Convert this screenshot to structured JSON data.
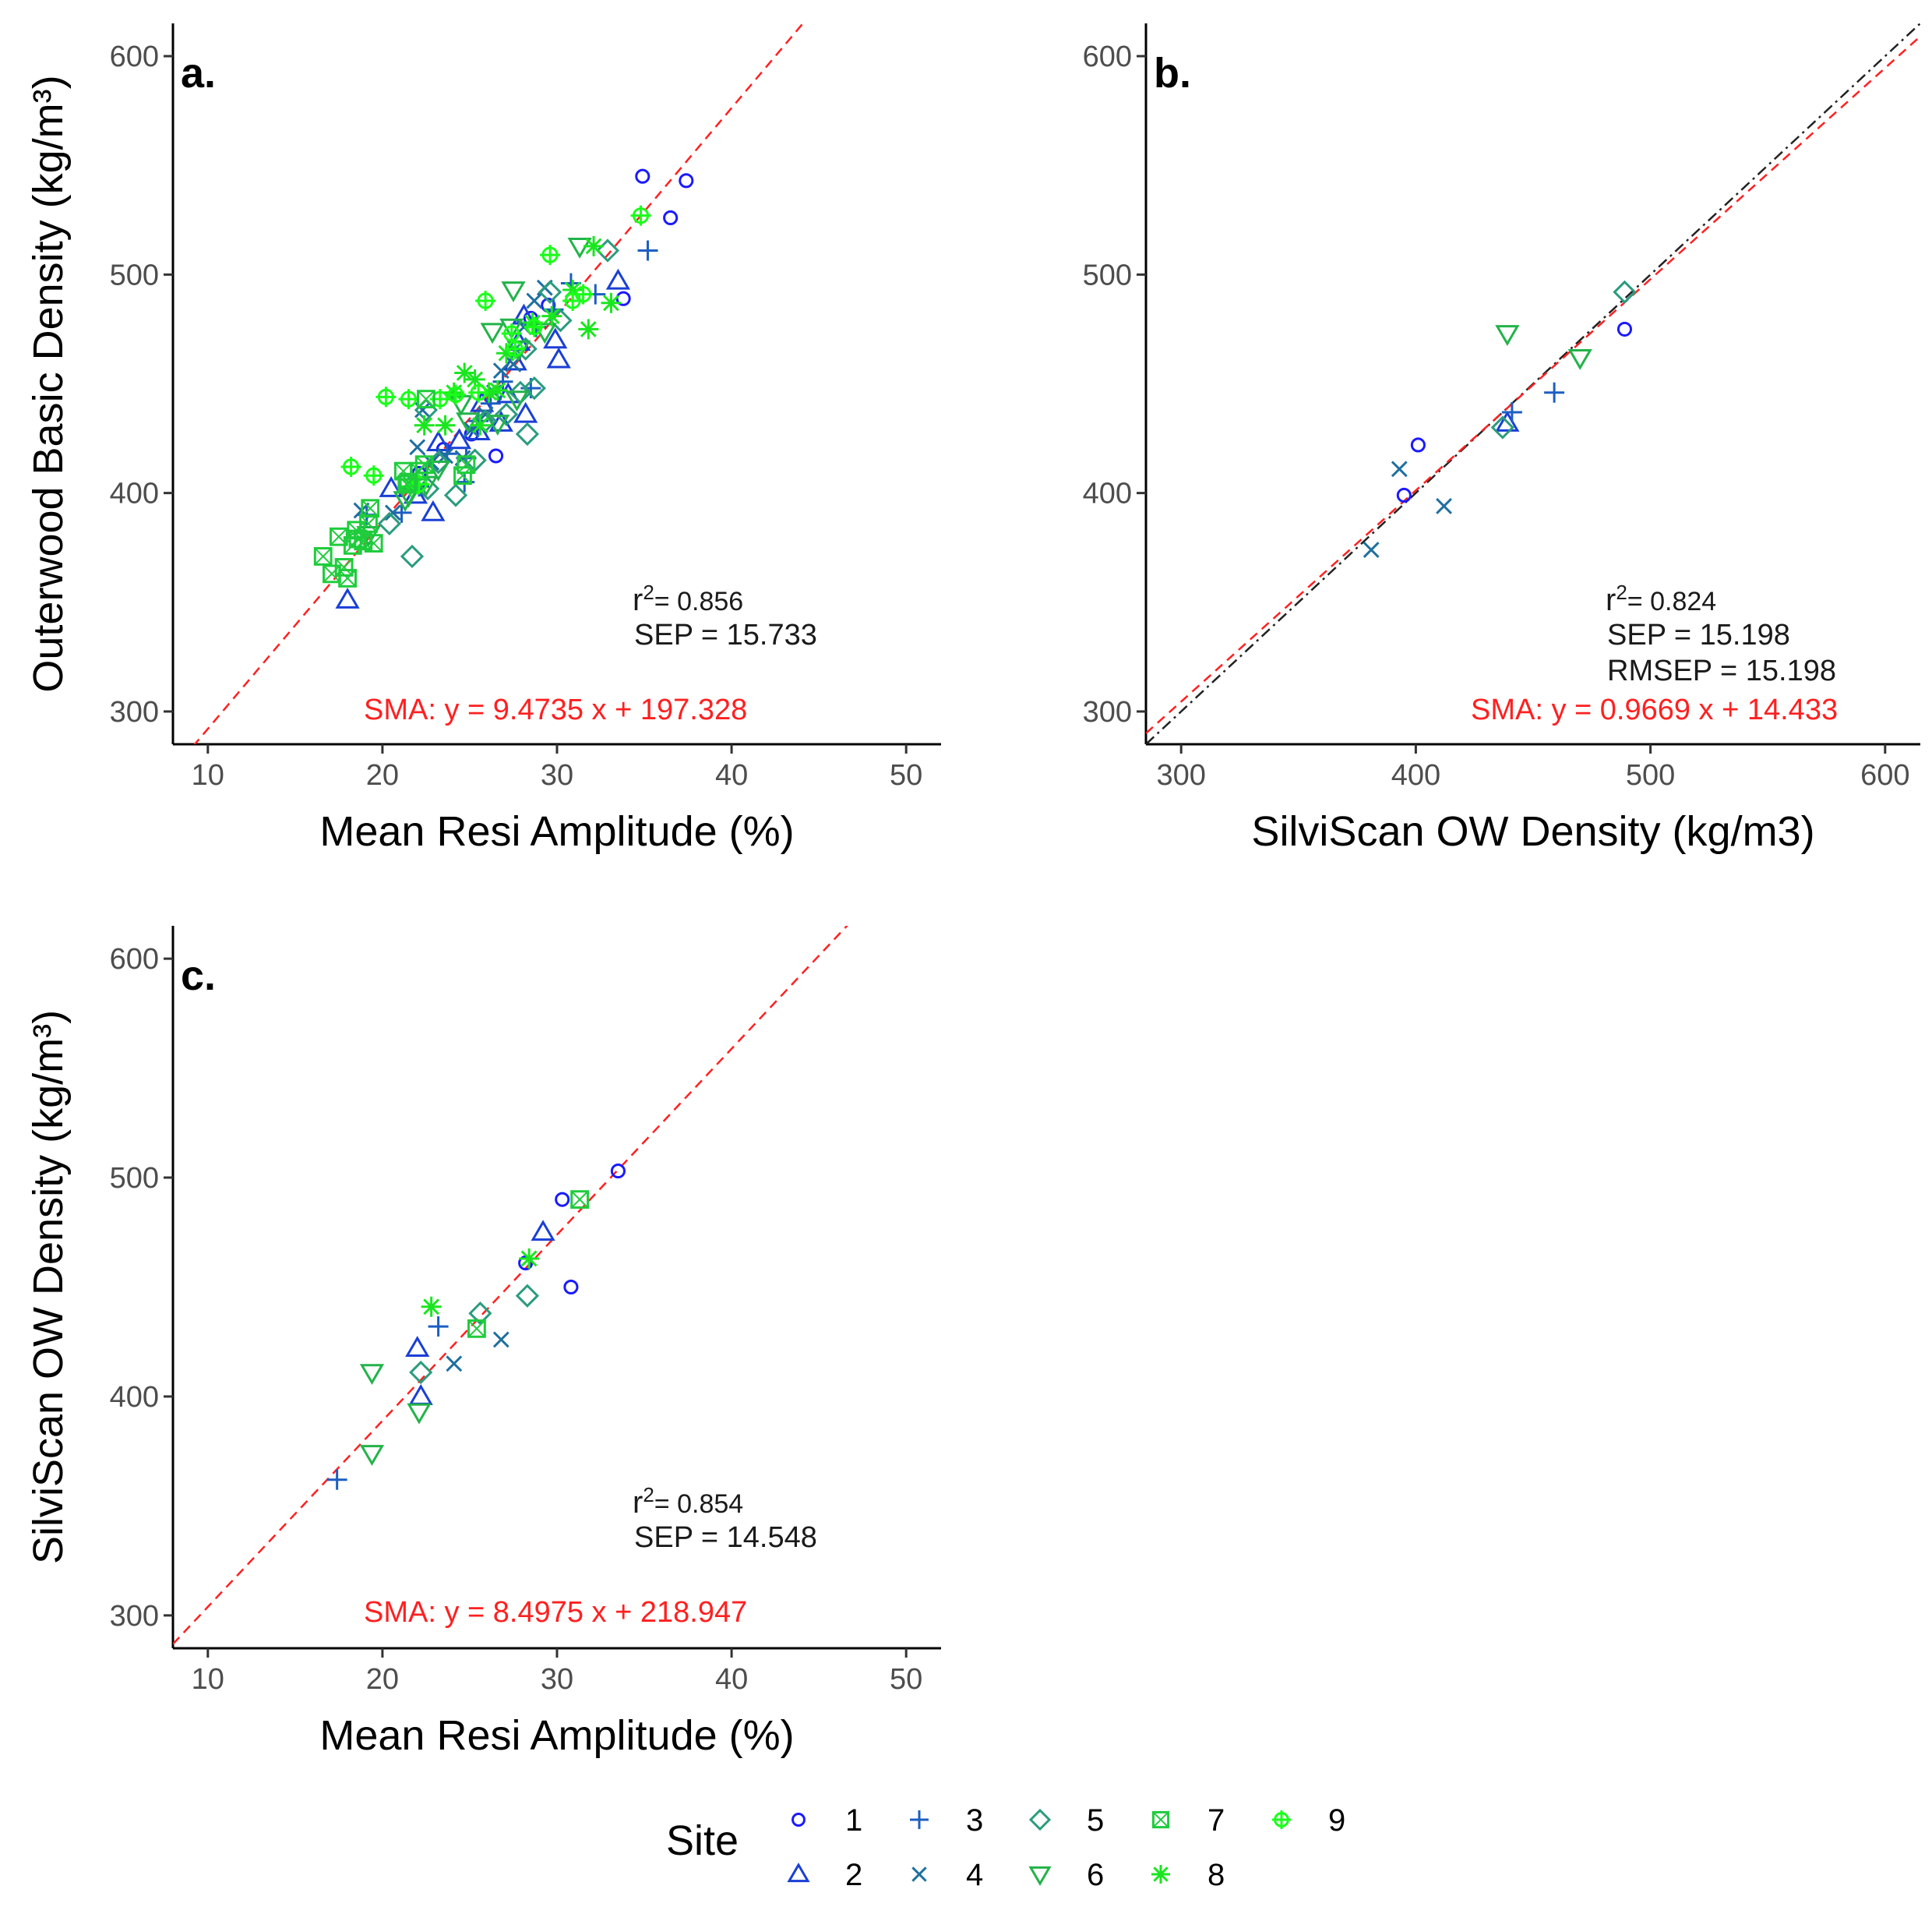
{
  "chart_data": [
    {
      "type": "scatter",
      "panel": "a.",
      "xlabel": "Mean Resi Amplitude (%)",
      "ylabel": "Outerwood Basic Density (kg/m³)",
      "xlim": [
        8,
        52
      ],
      "ylim": [
        285,
        615
      ],
      "xticks": [
        "10",
        "20",
        "30",
        "40",
        "50"
      ],
      "yticks": [
        "300",
        "400",
        "500",
        "600"
      ],
      "stats": {
        "r2_label": "r",
        "r2_sup": "2",
        "r2_value": "= 0.856",
        "sep": "SEP =  15.733",
        "rmsep": ""
      },
      "sma_label": "SMA: y =  9.4735 x + 197.328",
      "sma_line": {
        "slope": 9.4735,
        "intercept": 197.328
      },
      "identity_line": false,
      "points": [
        [
          34.9,
          545,
          1
        ],
        [
          37.4,
          543,
          1
        ],
        [
          36.5,
          526,
          1
        ],
        [
          33.8,
          489,
          1
        ],
        [
          28.5,
          480,
          1
        ],
        [
          29.5,
          486,
          1
        ],
        [
          26.5,
          417,
          1
        ],
        [
          25.1,
          427,
          1
        ],
        [
          23.5,
          420,
          1
        ],
        [
          22.1,
          409,
          1
        ],
        [
          33.5,
          497,
          2
        ],
        [
          30.1,
          461,
          2
        ],
        [
          29.9,
          470,
          2
        ],
        [
          28.1,
          481,
          2
        ],
        [
          27.8,
          469,
          2
        ],
        [
          27.6,
          460,
          2
        ],
        [
          27.2,
          445,
          2
        ],
        [
          28.2,
          436,
          2
        ],
        [
          26.8,
          432,
          2
        ],
        [
          25.7,
          441,
          2
        ],
        [
          24.4,
          424,
          2
        ],
        [
          23.2,
          423,
          2
        ],
        [
          22.9,
          391,
          2
        ],
        [
          21.9,
          399,
          2
        ],
        [
          20.5,
          402,
          2
        ],
        [
          18.0,
          351,
          2
        ],
        [
          25.5,
          428,
          2
        ],
        [
          35.2,
          511,
          3
        ],
        [
          32.2,
          491,
          3
        ],
        [
          30.8,
          496,
          3
        ],
        [
          29.8,
          484,
          3
        ],
        [
          28.8,
          476,
          3
        ],
        [
          28.5,
          448,
          3
        ],
        [
          27.6,
          466,
          3
        ],
        [
          26.9,
          451,
          3
        ],
        [
          26.2,
          441,
          3
        ],
        [
          25.5,
          433,
          3
        ],
        [
          24.8,
          416,
          3
        ],
        [
          24.7,
          405,
          3
        ],
        [
          23.7,
          418,
          3
        ],
        [
          22.1,
          403,
          3
        ],
        [
          21.1,
          391,
          3
        ],
        [
          19.1,
          390,
          3
        ],
        [
          29.3,
          494,
          4
        ],
        [
          28.7,
          488,
          4
        ],
        [
          28.1,
          476,
          4
        ],
        [
          27.5,
          459,
          4
        ],
        [
          26.8,
          456,
          4
        ],
        [
          26.4,
          446,
          4
        ],
        [
          25.9,
          436,
          4
        ],
        [
          25.1,
          429,
          4
        ],
        [
          24.6,
          416,
          4
        ],
        [
          23.6,
          417,
          4
        ],
        [
          22.8,
          414,
          4
        ],
        [
          22.0,
          421,
          4
        ],
        [
          21.9,
          404,
          4
        ],
        [
          20.6,
          391,
          4
        ],
        [
          22.3,
          438,
          4
        ],
        [
          18.8,
          392,
          4
        ],
        [
          32.9,
          511,
          5
        ],
        [
          30.2,
          479,
          5
        ],
        [
          29.6,
          492,
          5
        ],
        [
          28.2,
          466,
          5
        ],
        [
          28.7,
          448,
          5
        ],
        [
          28.3,
          427,
          5
        ],
        [
          27.9,
          446,
          5
        ],
        [
          27.1,
          436,
          5
        ],
        [
          25.9,
          433,
          5
        ],
        [
          25.3,
          415,
          5
        ],
        [
          24.2,
          399,
          5
        ],
        [
          23.2,
          414,
          5
        ],
        [
          22.6,
          402,
          5
        ],
        [
          21.7,
          371,
          5
        ],
        [
          20.4,
          386,
          5
        ],
        [
          22.5,
          438,
          5
        ],
        [
          31.3,
          513,
          6
        ],
        [
          29.3,
          474,
          6
        ],
        [
          27.5,
          493,
          6
        ],
        [
          27.4,
          476,
          6
        ],
        [
          27.8,
          466,
          6
        ],
        [
          26.3,
          474,
          6
        ],
        [
          27.7,
          443,
          6
        ],
        [
          26.6,
          432,
          6
        ],
        [
          24.9,
          433,
          6
        ],
        [
          23.2,
          411,
          6
        ],
        [
          22.5,
          404,
          6
        ],
        [
          21.5,
          399,
          6
        ],
        [
          21.3,
          397,
          6
        ],
        [
          19.2,
          381,
          6
        ],
        [
          24.5,
          441,
          6
        ],
        [
          32.1,
          513,
          8
        ],
        [
          31.8,
          475,
          8
        ],
        [
          30.9,
          493,
          8
        ],
        [
          28.6,
          478,
          8
        ],
        [
          27.1,
          464,
          8
        ],
        [
          26.1,
          446,
          8
        ],
        [
          25.3,
          452,
          8
        ],
        [
          24.7,
          455,
          8
        ],
        [
          24.1,
          446,
          8
        ],
        [
          23.6,
          431,
          8
        ],
        [
          22.4,
          431,
          8
        ],
        [
          21.6,
          403,
          8
        ],
        [
          29.7,
          481,
          8
        ],
        [
          33.1,
          487,
          8
        ],
        [
          26.6,
          447,
          8
        ],
        [
          25.6,
          431,
          8
        ],
        [
          34.8,
          527,
          9
        ],
        [
          31.5,
          491,
          9
        ],
        [
          30.9,
          488,
          9
        ],
        [
          29.6,
          509,
          9
        ],
        [
          28.7,
          476,
          9
        ],
        [
          27.4,
          473,
          9
        ],
        [
          27.6,
          466,
          9
        ],
        [
          25.9,
          488,
          9
        ],
        [
          25.5,
          446,
          9
        ],
        [
          24.2,
          445,
          9
        ],
        [
          23.3,
          443,
          9
        ],
        [
          21.5,
          443,
          9
        ],
        [
          20.2,
          444,
          9
        ],
        [
          19.5,
          408,
          9
        ],
        [
          18.2,
          412,
          9
        ],
        [
          22.1,
          404,
          9
        ],
        [
          16.6,
          371,
          7
        ],
        [
          17.1,
          363,
          7
        ],
        [
          17.5,
          380,
          7
        ],
        [
          17.8,
          366,
          7
        ],
        [
          18.0,
          361,
          7
        ],
        [
          18.3,
          376,
          7
        ],
        [
          18.5,
          383,
          7
        ],
        [
          18.9,
          378,
          7
        ],
        [
          19.2,
          386,
          7
        ],
        [
          19.3,
          393,
          7
        ],
        [
          19.5,
          377,
          7
        ],
        [
          18.6,
          379,
          7
        ],
        [
          21.2,
          410,
          7
        ],
        [
          21.4,
          404,
          7
        ],
        [
          22.1,
          410,
          7
        ],
        [
          22.4,
          413,
          7
        ],
        [
          24.8,
          413,
          7
        ],
        [
          22.5,
          443,
          7
        ],
        [
          24.6,
          408,
          7
        ],
        [
          21.5,
          405,
          7
        ]
      ]
    },
    {
      "type": "scatter",
      "panel": "b.",
      "xlabel": "SilviScan OW Density (kg/m3)",
      "ylabel": "",
      "xlim": [
        285,
        615
      ],
      "ylim": [
        285,
        615
      ],
      "xticks": [
        "300",
        "400",
        "500",
        "600"
      ],
      "yticks": [
        "300",
        "400",
        "500",
        "600"
      ],
      "stats": {
        "r2_label": "r",
        "r2_sup": "2",
        "r2_value": "= 0.824",
        "sep": "SEP =  15.198",
        "rmsep": "RMSEP =  15.198"
      },
      "sma_label": "SMA: y =  0.9669 x + 14.433",
      "sma_line": {
        "slope": 0.9669,
        "intercept": 14.433
      },
      "identity_line": true,
      "points": [
        [
          401,
          422,
          1
        ],
        [
          395,
          399,
          1
        ],
        [
          489,
          475,
          1
        ],
        [
          439,
          432,
          2
        ],
        [
          441,
          437,
          3
        ],
        [
          459,
          446,
          3
        ],
        [
          393,
          411,
          4
        ],
        [
          381,
          374,
          4
        ],
        [
          412,
          394,
          4
        ],
        [
          489,
          492,
          5
        ],
        [
          437,
          430,
          5
        ],
        [
          439,
          473,
          6
        ],
        [
          470,
          462,
          6
        ]
      ]
    },
    {
      "type": "scatter",
      "panel": "c.",
      "xlabel": "Mean Resi Amplitude (%)",
      "ylabel": "SilviScan OW Density (kg/m³)",
      "xlim": [
        8,
        52
      ],
      "ylim": [
        285,
        615
      ],
      "xticks": [
        "10",
        "20",
        "30",
        "40",
        "50"
      ],
      "yticks": [
        "300",
        "400",
        "500",
        "600"
      ],
      "stats": {
        "r2_label": "r",
        "r2_sup": "2",
        "r2_value": "= 0.854",
        "sep": "SEP =  14.548",
        "rmsep": ""
      },
      "sma_label": "SMA: y =  8.4975 x + 218.947",
      "sma_line": {
        "slope": 8.4975,
        "intercept": 218.947
      },
      "identity_line": false,
      "points": [
        [
          33.5,
          503,
          1
        ],
        [
          30.3,
          490,
          1
        ],
        [
          30.8,
          450,
          1
        ],
        [
          28.2,
          461,
          1
        ],
        [
          29.2,
          475,
          2
        ],
        [
          22.0,
          422,
          2
        ],
        [
          22.2,
          400,
          2
        ],
        [
          23.2,
          432,
          3
        ],
        [
          17.4,
          362,
          3
        ],
        [
          24.1,
          415,
          4
        ],
        [
          26.8,
          426,
          4
        ],
        [
          28.3,
          446,
          5
        ],
        [
          25.6,
          438,
          5
        ],
        [
          22.2,
          411,
          5
        ],
        [
          19.4,
          411,
          6
        ],
        [
          19.4,
          374,
          6
        ],
        [
          22.1,
          393,
          6
        ],
        [
          22.8,
          441,
          8
        ],
        [
          28.4,
          463,
          8
        ],
        [
          31.3,
          490,
          7
        ],
        [
          25.4,
          431,
          7
        ]
      ]
    }
  ],
  "legend": {
    "title": "Site",
    "entries": [
      {
        "label": "1",
        "site": 1
      },
      {
        "label": "3",
        "site": 3
      },
      {
        "label": "5",
        "site": 5
      },
      {
        "label": "7",
        "site": 7
      },
      {
        "label": "9",
        "site": 9
      },
      {
        "label": "2",
        "site": 2
      },
      {
        "label": "4",
        "site": 4
      },
      {
        "label": "6",
        "site": 6
      },
      {
        "label": "8",
        "site": 8
      }
    ]
  },
  "colors": {
    "site1": "#1a1aff",
    "site2": "#1a3fd6",
    "site3": "#1c5ec2",
    "site4": "#1f6fa0",
    "site5": "#2a9c7e",
    "site6": "#22b34a",
    "site7": "#1fcc3c",
    "site8": "#1ae61f",
    "site9": "#19ff19",
    "sma": "#ff2020",
    "identity": "#222222",
    "axis": "#000000",
    "tick_text": "#4d4d4d"
  }
}
